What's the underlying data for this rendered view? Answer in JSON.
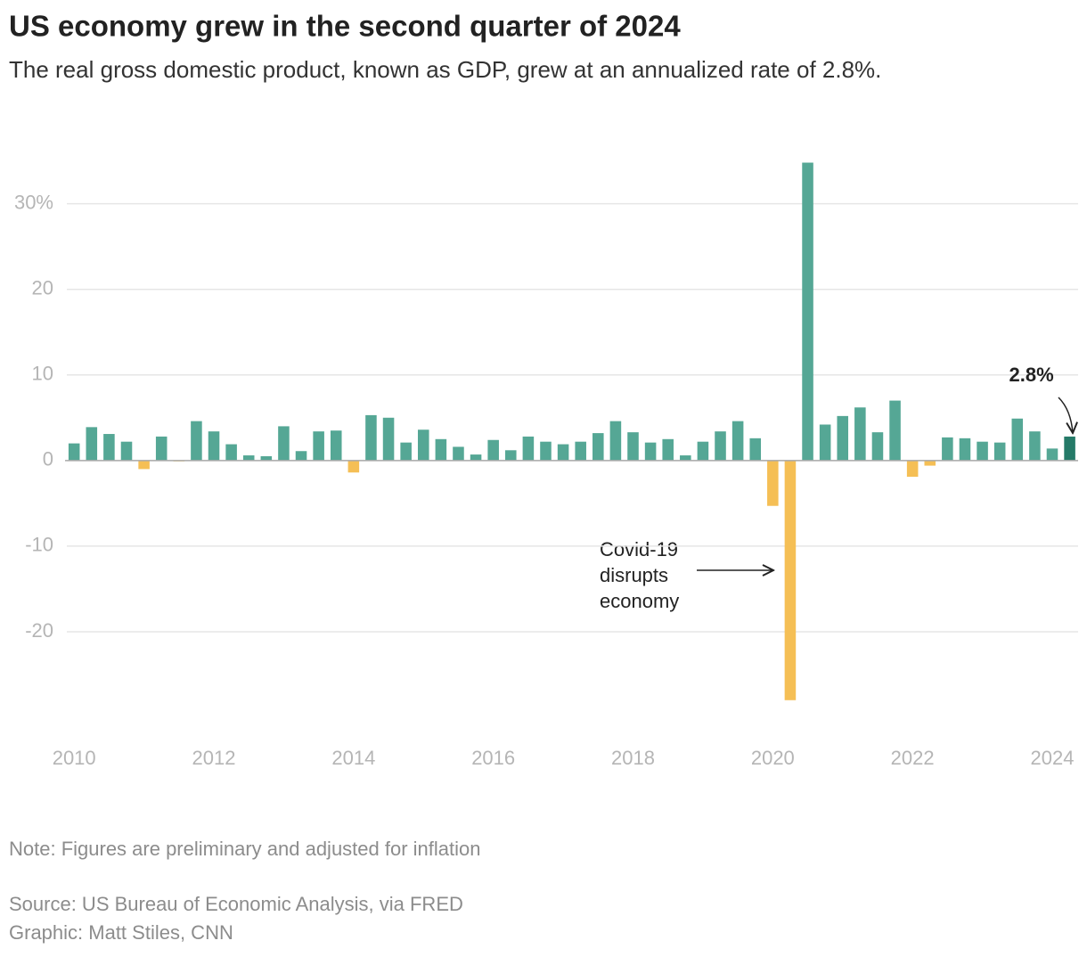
{
  "chart_data": {
    "type": "bar",
    "title": "US economy grew in the second quarter of 2024",
    "subtitle": "The real gross domestic product, known as GDP, grew at an annualized rate of 2.8%.",
    "x": [
      2010,
      2010.25,
      2010.5,
      2010.75,
      2011,
      2011.25,
      2011.5,
      2011.75,
      2012,
      2012.25,
      2012.5,
      2012.75,
      2013,
      2013.25,
      2013.5,
      2013.75,
      2014,
      2014.25,
      2014.5,
      2014.75,
      2015,
      2015.25,
      2015.5,
      2015.75,
      2016,
      2016.25,
      2016.5,
      2016.75,
      2017,
      2017.25,
      2017.5,
      2017.75,
      2018,
      2018.25,
      2018.5,
      2018.75,
      2019,
      2019.25,
      2019.5,
      2019.75,
      2020,
      2020.25,
      2020.5,
      2020.75,
      2021,
      2021.25,
      2021.5,
      2021.75,
      2022,
      2022.25,
      2022.5,
      2022.75,
      2023,
      2023.25,
      2023.5,
      2023.75,
      2024,
      2024.25
    ],
    "values": [
      2.0,
      3.9,
      3.1,
      2.2,
      -1.0,
      2.8,
      -0.1,
      4.6,
      3.4,
      1.9,
      0.6,
      0.5,
      4.0,
      1.1,
      3.4,
      3.5,
      -1.4,
      5.3,
      5.0,
      2.1,
      3.6,
      2.5,
      1.6,
      0.7,
      2.4,
      1.2,
      2.8,
      2.2,
      1.9,
      2.2,
      3.2,
      4.6,
      3.3,
      2.1,
      2.5,
      0.6,
      2.2,
      3.4,
      4.6,
      2.6,
      -5.3,
      -28.0,
      34.8,
      4.2,
      5.2,
      6.2,
      3.3,
      7.0,
      -1.9,
      -0.6,
      2.7,
      2.6,
      2.2,
      2.1,
      4.9,
      3.4,
      1.4,
      2.8
    ],
    "value_labels": [
      null,
      null,
      null,
      null,
      null,
      null,
      null,
      null,
      null,
      null,
      null,
      null,
      null,
      null,
      null,
      null,
      null,
      null,
      null,
      null,
      null,
      null,
      null,
      null,
      null,
      null,
      null,
      null,
      null,
      null,
      null,
      null,
      null,
      null,
      null,
      null,
      null,
      null,
      null,
      null,
      null,
      null,
      null,
      null,
      null,
      null,
      null,
      null,
      null,
      null,
      null,
      null,
      null,
      null,
      null,
      null,
      null,
      "2.8%"
    ],
    "colors": [
      "#55a795",
      "#55a795",
      "#55a795",
      "#55a795",
      "#f5bf55",
      "#55a795",
      "#f5bf55",
      "#55a795",
      "#55a795",
      "#55a795",
      "#55a795",
      "#55a795",
      "#55a795",
      "#55a795",
      "#55a795",
      "#55a795",
      "#f5bf55",
      "#55a795",
      "#55a795",
      "#55a795",
      "#55a795",
      "#55a795",
      "#55a795",
      "#55a795",
      "#55a795",
      "#55a795",
      "#55a795",
      "#55a795",
      "#55a795",
      "#55a795",
      "#55a795",
      "#55a795",
      "#55a795",
      "#55a795",
      "#55a795",
      "#55a795",
      "#55a795",
      "#55a795",
      "#55a795",
      "#55a795",
      "#f5bf55",
      "#f5bf55",
      "#55a795",
      "#55a795",
      "#55a795",
      "#55a795",
      "#55a795",
      "#55a795",
      "#f5bf55",
      "#f5bf55",
      "#55a795",
      "#55a795",
      "#55a795",
      "#55a795",
      "#55a795",
      "#55a795",
      "#55a795",
      "#257a68"
    ],
    "xlim": [
      2009.87,
      2024.37
    ],
    "xticks": [
      2010,
      2012,
      2014,
      2016,
      2018,
      2020,
      2022,
      2024
    ],
    "ylim": [
      -30,
      36
    ],
    "yticks": [
      -20,
      -10,
      0,
      10,
      20,
      {
        "value": 30,
        "label": "30%"
      }
    ],
    "grid": true,
    "annotation": [
      "Covid-19",
      "disrupts",
      "economy"
    ],
    "note": "Note: Figures are preliminary and adjusted for inflation",
    "source": "Source: US Bureau of Economic Analysis, via FRED",
    "credit": "Graphic: Matt Stiles, CNN"
  }
}
